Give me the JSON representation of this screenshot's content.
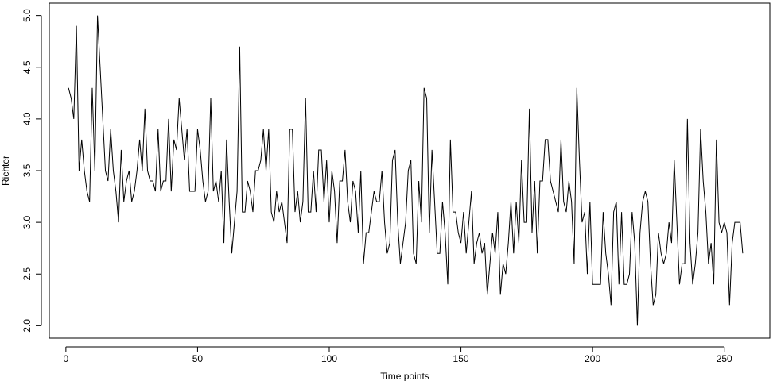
{
  "chart_data": {
    "type": "line",
    "xlabel": "Time points",
    "ylabel": "Richter",
    "color": "#000000",
    "x": [
      1,
      2,
      3,
      4,
      5,
      6,
      7,
      8,
      9,
      10,
      11,
      12,
      13,
      14,
      15,
      16,
      17,
      18,
      19,
      20,
      21,
      22,
      23,
      24,
      25,
      26,
      27,
      28,
      29,
      30,
      31,
      32,
      33,
      34,
      35,
      36,
      37,
      38,
      39,
      40,
      41,
      42,
      43,
      44,
      45,
      46,
      47,
      48,
      49,
      50,
      51,
      52,
      53,
      54,
      55,
      56,
      57,
      58,
      59,
      60,
      61,
      62,
      63,
      64,
      65,
      66,
      67,
      68,
      69,
      70,
      71,
      72,
      73,
      74,
      75,
      76,
      77,
      78,
      79,
      80,
      81,
      82,
      83,
      84,
      85,
      86,
      87,
      88,
      89,
      90,
      91,
      92,
      93,
      94,
      95,
      96,
      97,
      98,
      99,
      100,
      101,
      102,
      103,
      104,
      105,
      106,
      107,
      108,
      109,
      110,
      111,
      112,
      113,
      114,
      115,
      116,
      117,
      118,
      119,
      120,
      121,
      122,
      123,
      124,
      125,
      126,
      127,
      128,
      129,
      130,
      131,
      132,
      133,
      134,
      135,
      136,
      137,
      138,
      139,
      140,
      141,
      142,
      143,
      144,
      145,
      146,
      147,
      148,
      149,
      150,
      151,
      152,
      153,
      154,
      155,
      156,
      157,
      158,
      159,
      160,
      161,
      162,
      163,
      164,
      165,
      166,
      167,
      168,
      169,
      170,
      171,
      172,
      173,
      174,
      175,
      176,
      177,
      178,
      179,
      180,
      181,
      182,
      183,
      184,
      185,
      186,
      187,
      188,
      189,
      190,
      191,
      192,
      193,
      194,
      195,
      196,
      197,
      198,
      199,
      200,
      201,
      202,
      203,
      204,
      205,
      206,
      207,
      208,
      209,
      210,
      211,
      212,
      213,
      214,
      215,
      216,
      217,
      218,
      219,
      220,
      221,
      222,
      223,
      224,
      225,
      226,
      227,
      228,
      229,
      230,
      231,
      232,
      233,
      234,
      235,
      236,
      237,
      238,
      239,
      240,
      241,
      242,
      243,
      244,
      245,
      246,
      247,
      248,
      249,
      250,
      251,
      252,
      253,
      254,
      255,
      256,
      257
    ],
    "values": [
      4.3,
      4.2,
      4.0,
      4.9,
      3.5,
      3.8,
      3.5,
      3.3,
      3.2,
      4.3,
      3.5,
      5.0,
      4.5,
      4.0,
      3.5,
      3.4,
      3.9,
      3.5,
      3.3,
      3.0,
      3.7,
      3.2,
      3.4,
      3.5,
      3.2,
      3.3,
      3.5,
      3.8,
      3.5,
      4.1,
      3.5,
      3.4,
      3.4,
      3.3,
      3.9,
      3.3,
      3.4,
      3.4,
      4.0,
      3.3,
      3.8,
      3.7,
      4.2,
      3.9,
      3.6,
      3.9,
      3.3,
      3.3,
      3.3,
      3.9,
      3.7,
      3.4,
      3.2,
      3.3,
      4.2,
      3.3,
      3.4,
      3.2,
      3.5,
      2.8,
      3.8,
      3.2,
      2.7,
      3.0,
      3.3,
      4.7,
      3.1,
      3.1,
      3.4,
      3.3,
      3.1,
      3.5,
      3.5,
      3.6,
      3.9,
      3.5,
      3.9,
      3.1,
      3.0,
      3.3,
      3.1,
      3.2,
      3.0,
      2.8,
      3.9,
      3.9,
      3.1,
      3.3,
      3.0,
      3.2,
      4.2,
      3.1,
      3.1,
      3.5,
      3.1,
      3.7,
      3.7,
      3.2,
      3.6,
      3.0,
      3.5,
      3.3,
      2.8,
      3.4,
      3.4,
      3.7,
      3.2,
      3.0,
      3.4,
      3.3,
      2.9,
      3.5,
      2.6,
      2.9,
      2.9,
      3.1,
      3.3,
      3.2,
      3.2,
      3.5,
      3.0,
      2.7,
      2.8,
      3.6,
      3.7,
      3.0,
      2.6,
      2.8,
      3.0,
      3.5,
      3.6,
      2.7,
      2.6,
      3.4,
      3.0,
      4.3,
      4.2,
      2.9,
      3.7,
      3.2,
      2.7,
      2.7,
      3.2,
      2.9,
      2.4,
      3.8,
      3.1,
      3.1,
      2.9,
      2.8,
      3.1,
      2.7,
      3.0,
      3.3,
      2.6,
      2.8,
      2.9,
      2.7,
      2.8,
      2.3,
      2.6,
      2.9,
      2.7,
      3.1,
      2.3,
      2.6,
      2.5,
      2.8,
      3.2,
      2.7,
      3.2,
      2.8,
      3.6,
      3.0,
      3.0,
      4.1,
      2.9,
      3.4,
      2.7,
      3.4,
      3.4,
      3.8,
      3.8,
      3.4,
      3.3,
      3.2,
      3.1,
      3.8,
      3.2,
      3.1,
      3.4,
      3.2,
      2.6,
      4.3,
      3.6,
      3.0,
      3.1,
      2.5,
      3.2,
      2.4,
      2.4,
      2.4,
      2.4,
      3.1,
      2.7,
      2.5,
      2.2,
      3.1,
      3.2,
      2.4,
      3.1,
      2.4,
      2.4,
      2.5,
      3.1,
      2.8,
      2.0,
      2.9,
      3.2,
      3.3,
      3.2,
      2.6,
      2.2,
      2.3,
      2.9,
      2.7,
      2.6,
      2.7,
      3.0,
      2.8,
      3.6,
      3.0,
      2.4,
      2.6,
      2.6,
      4.0,
      2.8,
      2.4,
      2.6,
      2.9,
      3.9,
      3.4,
      3.1,
      2.6,
      2.8,
      2.4,
      3.8,
      3.0,
      2.9,
      3.0,
      2.9,
      2.2,
      2.8,
      3.0,
      3.0,
      3.0,
      2.7
    ],
    "xlim": [
      -6.3,
      267.3
    ],
    "ylim": [
      1.88,
      5.12
    ],
    "xticks": [
      0,
      50,
      100,
      150,
      200,
      250
    ],
    "yticks": [
      {
        "value": 2,
        "label": "2.0"
      },
      2.5,
      {
        "value": 3,
        "label": "3.0"
      },
      3.5,
      {
        "value": 4,
        "label": "4.0"
      },
      4.5,
      {
        "value": 5,
        "label": "5.0"
      }
    ]
  }
}
